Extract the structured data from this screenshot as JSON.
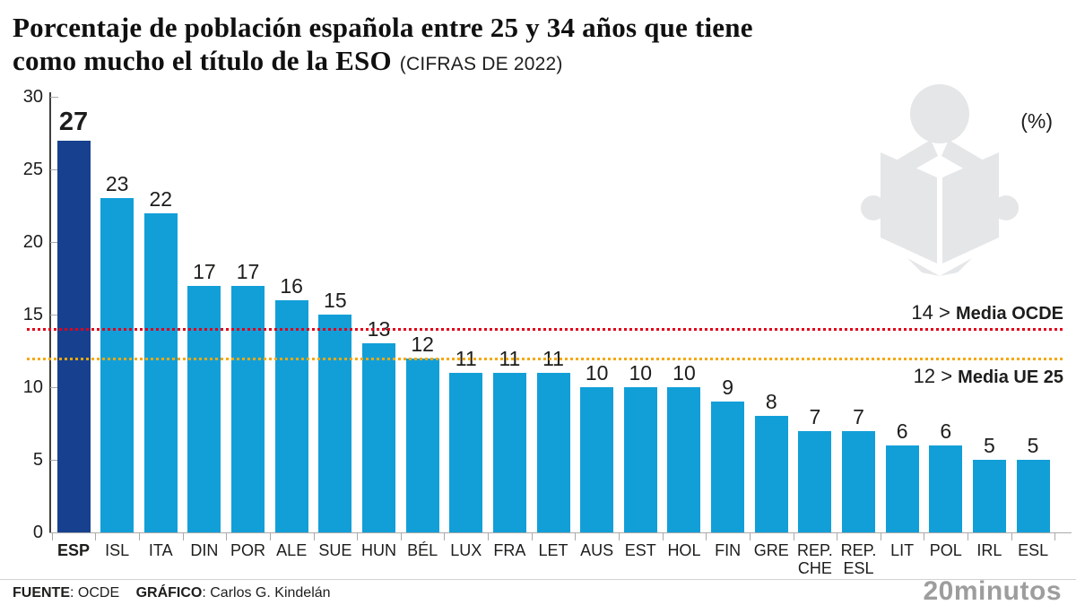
{
  "title": {
    "line1": "Porcentaje de población española entre 25 y 34 años que tiene",
    "line2": "como mucho el título de la ESO",
    "subtitle": "(CIFRAS DE 2022)"
  },
  "unit_label": "(%)",
  "chart_data": {
    "type": "bar",
    "title": "Porcentaje de población española entre 25 y 34 años que tiene como mucho el título de la ESO (CIFRAS DE 2022)",
    "xlabel": "",
    "ylabel": "(%)",
    "ylim": [
      0,
      30
    ],
    "yticks": [
      0,
      5,
      10,
      15,
      20,
      25,
      30
    ],
    "grid": false,
    "categories": [
      "ESP",
      "ISL",
      "ITA",
      "DIN",
      "POR",
      "ALE",
      "SUE",
      "HUN",
      "BÉL",
      "LUX",
      "FRA",
      "LET",
      "AUS",
      "EST",
      "HOL",
      "FIN",
      "GRE",
      "REP. CHE",
      "REP. ESL",
      "LIT",
      "POL",
      "IRL",
      "ESL"
    ],
    "values": [
      27,
      23,
      22,
      17,
      17,
      16,
      15,
      13,
      12,
      11,
      11,
      11,
      10,
      10,
      10,
      9,
      8,
      7,
      7,
      6,
      6,
      5,
      5
    ],
    "highlight_category": "ESP",
    "bar_color": "#129fd8",
    "highlight_color": "#17418f",
    "reference_lines": [
      {
        "value": 14,
        "label_value": "14 >",
        "label_text": "Media OCDE",
        "color": "#e2001a"
      },
      {
        "value": 12,
        "label_value": "12 >",
        "label_text": "Media UE 25",
        "color": "#f6a800"
      }
    ]
  },
  "icons": {
    "watermark": "book-reader-icon",
    "watermark_color": "#e4e6e8"
  },
  "footer": {
    "source_label": "FUENTE",
    "source_value": ": OCDE",
    "credit_label": "GRÁFICO",
    "credit_value": ": Carlos G. Kindelán",
    "brand": "20minutos"
  }
}
